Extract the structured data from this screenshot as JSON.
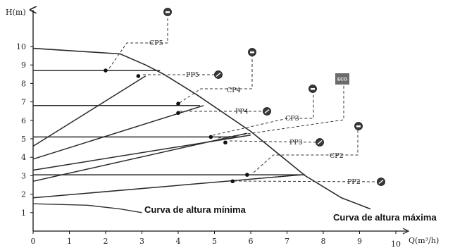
{
  "chart_data": {
    "type": "line",
    "xlabel": "Q(m³/h)",
    "ylabel": "H(m)",
    "xlim": [
      0,
      10
    ],
    "ylim": [
      0,
      10
    ],
    "x_ticks": [
      "0",
      "1",
      "2",
      "3",
      "4",
      "5",
      "6",
      "7",
      "8",
      "9",
      "10"
    ],
    "y_ticks": [
      "1",
      "2",
      "3",
      "4",
      "5",
      "6",
      "7",
      "8",
      "9",
      "10"
    ],
    "max_curve": {
      "label": "Curva de altura máxima",
      "points": [
        [
          0,
          9.9
        ],
        [
          2.4,
          9.6
        ],
        [
          3.1,
          9.0
        ],
        [
          3.6,
          8.5
        ],
        [
          4.5,
          7.4
        ],
        [
          6.0,
          5.4
        ],
        [
          7.5,
          3.0
        ],
        [
          8.5,
          1.8
        ],
        [
          9.3,
          1.2
        ]
      ]
    },
    "min_curve": {
      "label": "Curva de altura mínima",
      "points": [
        [
          0,
          1.48
        ],
        [
          1.5,
          1.4
        ],
        [
          2.4,
          1.2
        ],
        [
          3.0,
          1.0
        ]
      ]
    },
    "series": [
      {
        "name": "CP5",
        "points": [
          [
            0,
            8.7
          ],
          [
            3.5,
            8.7
          ]
        ],
        "marker": [
          2.0,
          8.7
        ],
        "symbol": "CP"
      },
      {
        "name": "PP5",
        "points": [
          [
            0,
            4.6
          ],
          [
            3.1,
            8.4
          ]
        ],
        "marker": [
          2.9,
          8.4
        ],
        "symbol": "PP"
      },
      {
        "name": "CP4",
        "points": [
          [
            0,
            6.8
          ],
          [
            4.6,
            6.8
          ]
        ],
        "marker": [
          4.0,
          6.9
        ],
        "symbol": "CP"
      },
      {
        "name": "PP4",
        "points": [
          [
            0,
            3.9
          ],
          [
            4.7,
            6.8
          ]
        ],
        "marker": [
          4.0,
          6.4
        ],
        "symbol": "PP"
      },
      {
        "name": "CP3",
        "points": [
          [
            0,
            5.1
          ],
          [
            5.7,
            5.1
          ]
        ],
        "marker": [
          4.9,
          5.1
        ],
        "symbol": "CP"
      },
      {
        "name": "PP3",
        "points": [
          [
            0,
            2.7
          ],
          [
            5.9,
            5.3
          ]
        ],
        "marker": [
          5.3,
          4.8
        ],
        "symbol": "PP"
      },
      {
        "name": "ECO",
        "points": [
          [
            0,
            3.3
          ],
          [
            6.0,
            5.2
          ]
        ],
        "symbol": "ECO"
      },
      {
        "name": "CP2",
        "points": [
          [
            0,
            3.05
          ],
          [
            7.5,
            3.05
          ]
        ],
        "marker": [
          5.9,
          3.05
        ],
        "symbol": "CP"
      },
      {
        "name": "PP2",
        "points": [
          [
            0,
            1.8
          ],
          [
            7.4,
            3.05
          ]
        ],
        "marker": [
          5.5,
          2.7
        ],
        "symbol": "PP"
      }
    ],
    "annotations": [
      "CP5",
      "PP5",
      "CP4",
      "PP4",
      "CP3",
      "PP3",
      "CP2",
      "PP2",
      "ECO",
      "Curva de altura mínima",
      "Curva de altura máxima"
    ]
  }
}
